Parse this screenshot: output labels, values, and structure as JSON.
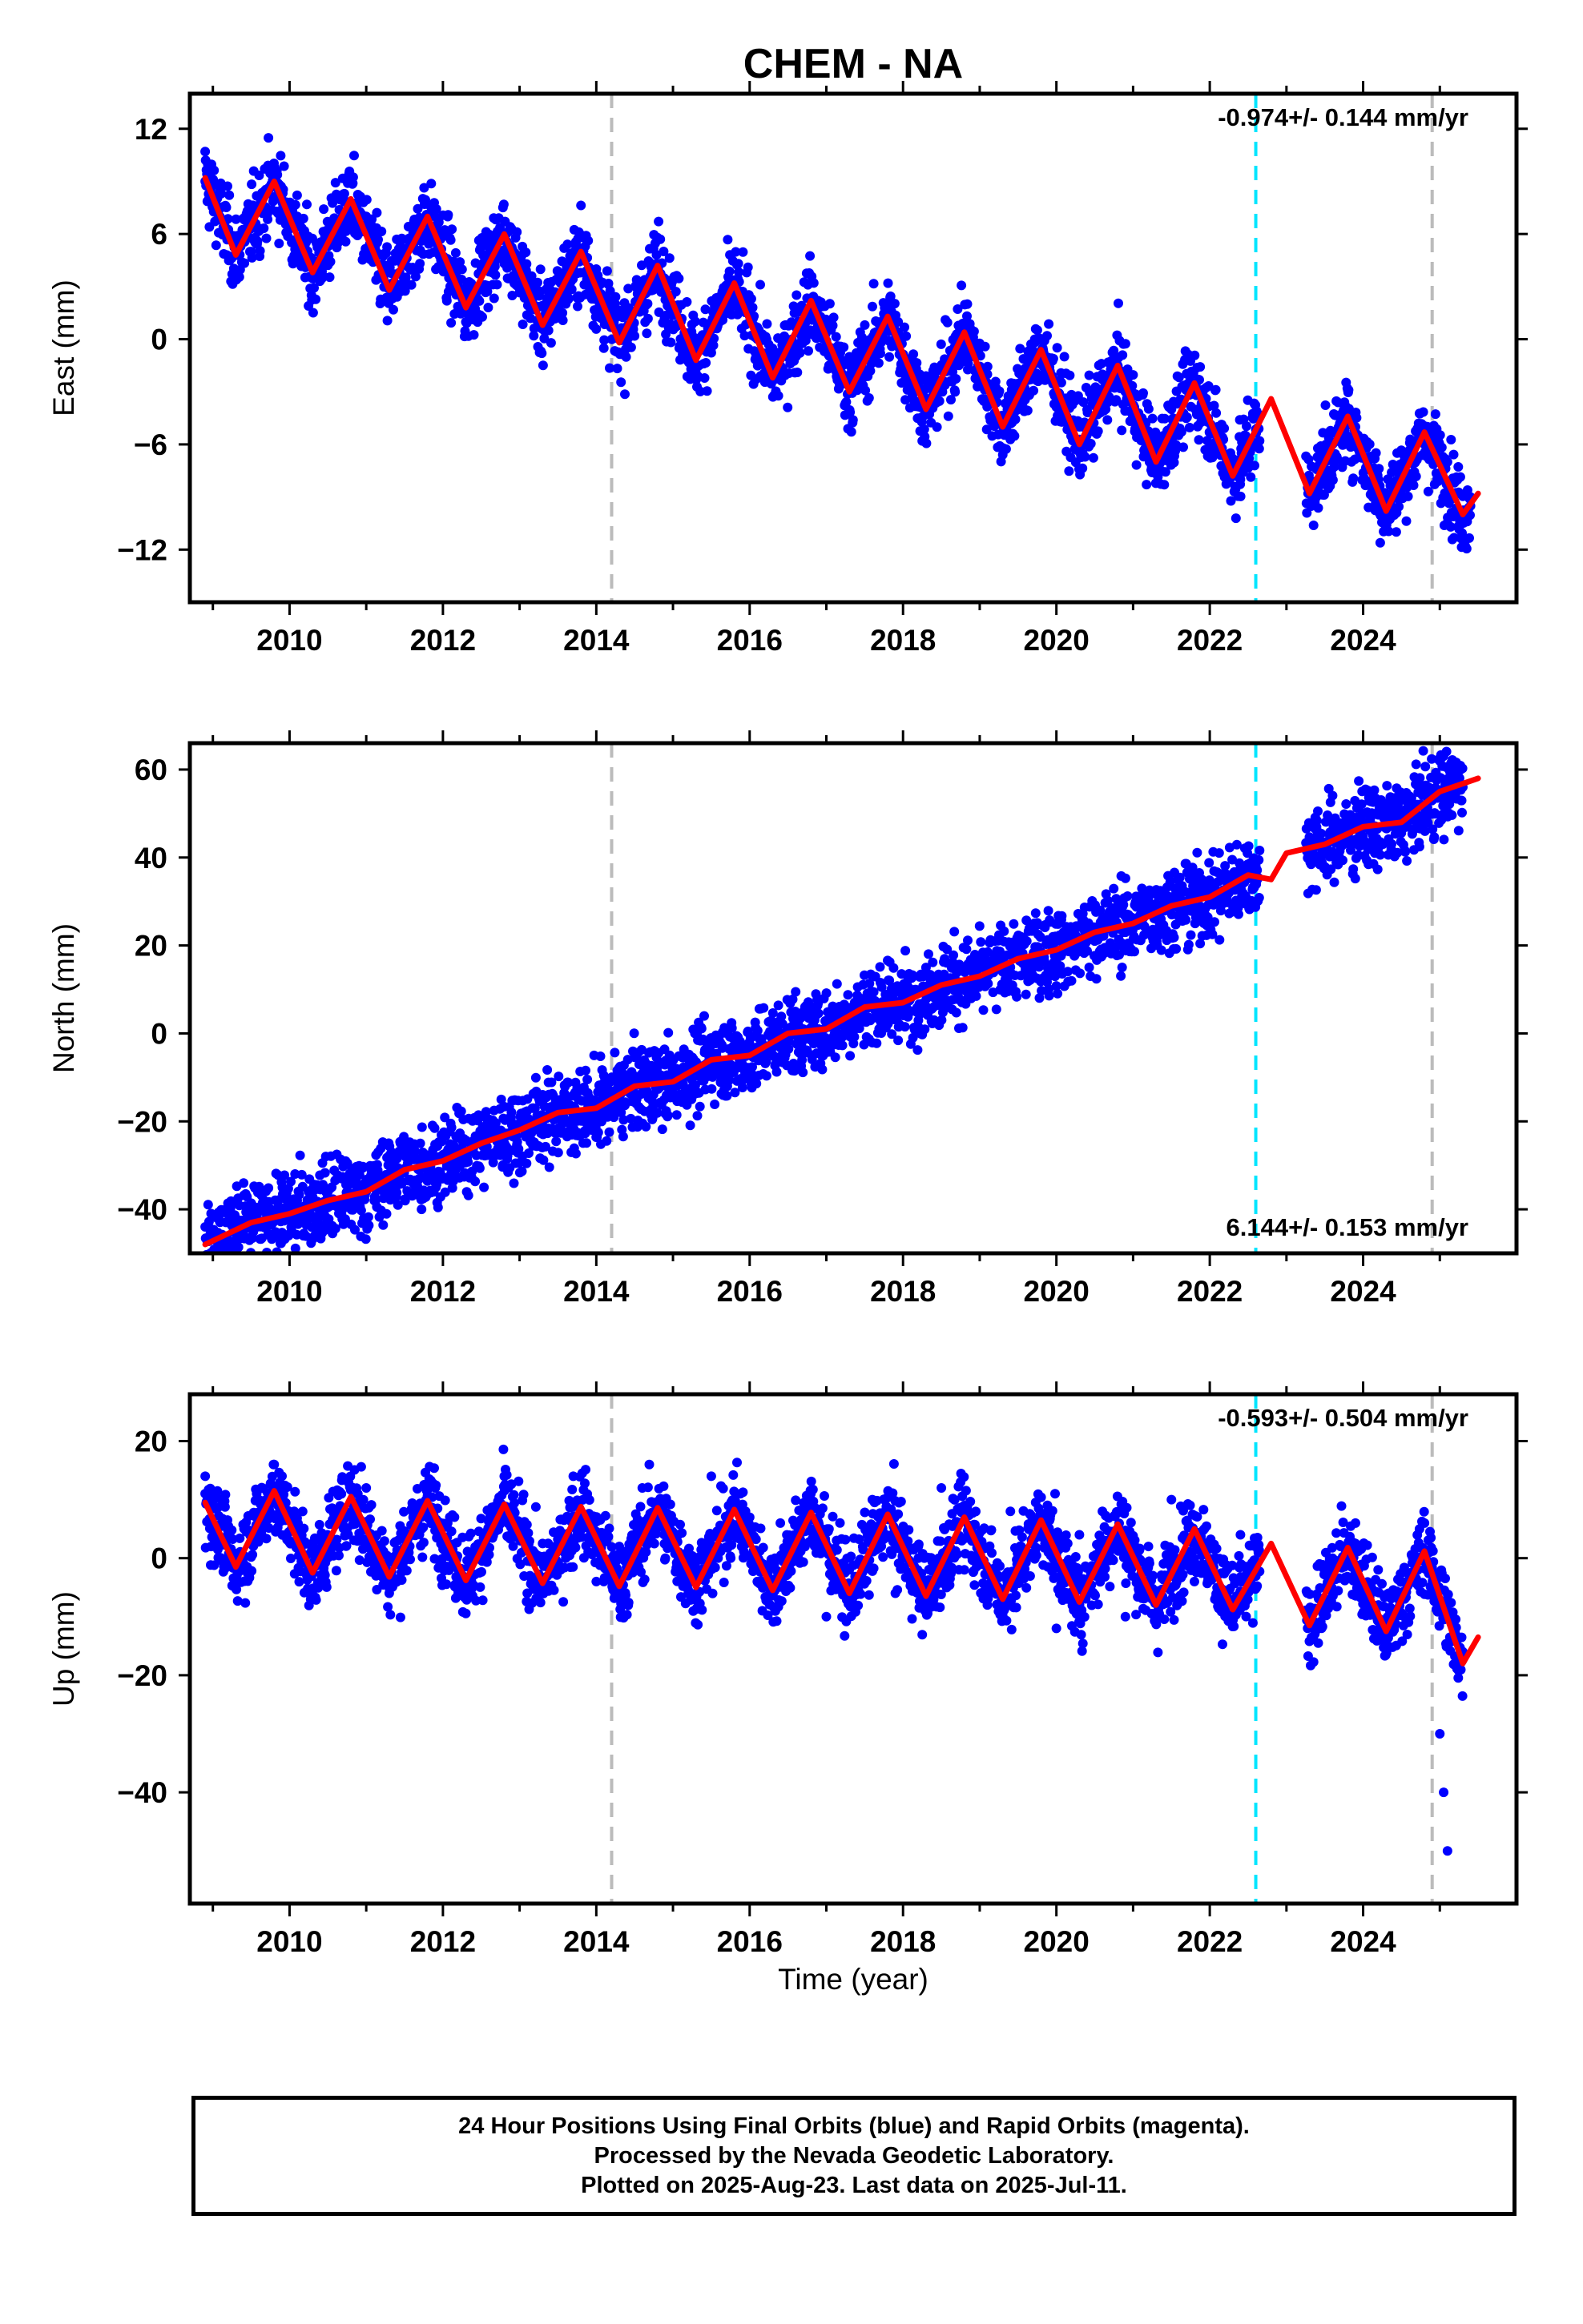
{
  "chart_data": {
    "type": "scatter",
    "title": "CHEM - NA",
    "xlabel": "Time (year)",
    "x_tick_labels": [
      "2010",
      "2012",
      "2014",
      "2016",
      "2018",
      "2020",
      "2022",
      "2024"
    ],
    "xlim": [
      2008.7,
      2026.0
    ],
    "reference_lines": [
      {
        "x": 2014.2,
        "color": "#bbbbbb",
        "style": "dashed"
      },
      {
        "x": 2022.6,
        "color": "#00e5ff",
        "style": "dashed"
      },
      {
        "x": 2024.9,
        "color": "#bbbbbb",
        "style": "dashed"
      }
    ],
    "data_gap": [
      2022.65,
      2023.25
    ],
    "colors": {
      "points": "#0000ff",
      "model": "#ff0000",
      "axes": "#000000"
    },
    "panels": [
      {
        "id": "east",
        "ylabel": "East (mm)",
        "ylim": [
          -15,
          14
        ],
        "yticks": [
          12,
          6,
          0,
          -6,
          -12
        ],
        "rate_label": "-0.974+/- 0.144 mm/yr",
        "rate_position": "top-right",
        "series": [
          {
            "type": "scatter",
            "x": [
              2008.9,
              2009.2,
              2009.5,
              2009.8,
              2010.1,
              2010.4,
              2010.7,
              2011.0,
              2011.3,
              2011.6,
              2011.9,
              2012.2,
              2012.5,
              2012.8,
              2013.1,
              2013.4,
              2013.7,
              2014.0,
              2014.3,
              2014.6,
              2014.9,
              2015.2,
              2015.5,
              2015.8,
              2016.1,
              2016.4,
              2016.7,
              2017.0,
              2017.3,
              2017.6,
              2017.9,
              2018.2,
              2018.5,
              2018.8,
              2019.1,
              2019.4,
              2019.7,
              2020.0,
              2020.3,
              2020.6,
              2020.9,
              2021.2,
              2021.5,
              2021.8,
              2022.1,
              2022.4,
              2023.3,
              2023.6,
              2023.9,
              2024.2,
              2024.5,
              2024.8,
              2025.1,
              2025.4
            ],
            "y": [
              9,
              6,
              5,
              9,
              7,
              4,
              7,
              7,
              4,
              4,
              7,
              3,
              3,
              5,
              3,
              1,
              4,
              4,
              0,
              2,
              3,
              0,
              0,
              3,
              0,
              -2,
              1,
              1,
              -1,
              0,
              1,
              -2,
              -3,
              0,
              -2,
              -4,
              -1,
              -3,
              -5,
              -2,
              -3,
              -6,
              -4,
              -3,
              -5,
              -8,
              -8,
              -6,
              -5,
              -8,
              -9,
              -6,
              -7,
              -9
            ]
          },
          {
            "type": "line",
            "x": [
              2008.9,
              2009.3,
              2009.8,
              2010.3,
              2010.8,
              2011.3,
              2011.8,
              2012.3,
              2012.8,
              2013.3,
              2013.8,
              2014.3,
              2014.8,
              2015.3,
              2015.8,
              2016.3,
              2016.8,
              2017.3,
              2017.8,
              2018.3,
              2018.8,
              2019.3,
              2019.8,
              2020.3,
              2020.8,
              2021.3,
              2021.8,
              2022.3,
              2022.8,
              2023.3,
              2023.8,
              2024.3,
              2024.8,
              2025.3,
              2025.5
            ],
            "y": [
              9.2,
              4.8,
              9.0,
              3.8,
              8.0,
              2.8,
              7.0,
              1.8,
              6.0,
              0.8,
              5.0,
              -0.2,
              4.2,
              -1.2,
              3.2,
              -2.2,
              2.2,
              -3.0,
              1.3,
              -4.0,
              0.4,
              -5.0,
              -0.6,
              -6.0,
              -1.5,
              -7.0,
              -2.5,
              -7.8,
              -3.4,
              -8.8,
              -4.4,
              -9.8,
              -5.3,
              -10.0,
              -8.8
            ]
          }
        ]
      },
      {
        "id": "north",
        "ylabel": "North (mm)",
        "ylim": [
          -50,
          66
        ],
        "yticks": [
          60,
          40,
          20,
          0,
          -20,
          -40
        ],
        "rate_label": "6.144+/- 0.153 mm/yr",
        "rate_position": "bottom-right",
        "series": [
          {
            "type": "scatter",
            "x": [
              2008.9,
              2009.3,
              2009.7,
              2010.1,
              2010.5,
              2010.9,
              2011.3,
              2011.7,
              2012.1,
              2012.5,
              2012.9,
              2013.3,
              2013.7,
              2014.1,
              2014.5,
              2014.9,
              2015.3,
              2015.7,
              2016.1,
              2016.5,
              2016.9,
              2017.3,
              2017.7,
              2018.1,
              2018.5,
              2018.9,
              2019.3,
              2019.7,
              2020.1,
              2020.5,
              2020.9,
              2021.3,
              2021.7,
              2022.1,
              2022.5,
              2023.3,
              2023.7,
              2024.1,
              2024.5,
              2024.9,
              2025.3
            ],
            "y": [
              -44,
              -42,
              -44,
              -38,
              -36,
              -37,
              -32,
              -31,
              -27,
              -25,
              -23,
              -20,
              -19,
              -15,
              -12,
              -11,
              -8,
              -7,
              -4,
              -2,
              1,
              3,
              5,
              8,
              10,
              12,
              14,
              17,
              19,
              21,
              23,
              26,
              28,
              32,
              36,
              42,
              43,
              47,
              49,
              53,
              56
            ]
          },
          {
            "type": "line",
            "x": [
              2008.9,
              2009.5,
              2010.0,
              2010.5,
              2011.0,
              2011.5,
              2012.0,
              2012.5,
              2013.0,
              2013.5,
              2014.0,
              2014.5,
              2015.0,
              2015.5,
              2016.0,
              2016.5,
              2017.0,
              2017.5,
              2018.0,
              2018.5,
              2019.0,
              2019.5,
              2020.0,
              2020.5,
              2021.0,
              2021.5,
              2022.0,
              2022.5,
              2022.8,
              2023.0,
              2023.5,
              2024.0,
              2024.5,
              2025.0,
              2025.5
            ],
            "y": [
              -48,
              -43,
              -41,
              -38,
              -36,
              -31,
              -29,
              -25,
              -22,
              -18,
              -17,
              -12,
              -11,
              -6,
              -5,
              0,
              1,
              6,
              7,
              11,
              13,
              17,
              19,
              23,
              25,
              29,
              31,
              36,
              35,
              41,
              43,
              47,
              48,
              55,
              58
            ]
          }
        ]
      },
      {
        "id": "up",
        "ylabel": "Up (mm)",
        "ylim": [
          -59,
          28
        ],
        "yticks": [
          20,
          0,
          -20,
          -40
        ],
        "rate_label": "-0.593+/- 0.504 mm/yr",
        "rate_position": "top-right",
        "series": [
          {
            "type": "scatter",
            "x": [
              2008.9,
              2009.2,
              2009.5,
              2009.8,
              2010.1,
              2010.4,
              2010.7,
              2011.0,
              2011.3,
              2011.6,
              2011.9,
              2012.2,
              2012.5,
              2012.8,
              2013.1,
              2013.4,
              2013.7,
              2014.0,
              2014.3,
              2014.6,
              2014.9,
              2015.2,
              2015.5,
              2015.8,
              2016.1,
              2016.4,
              2016.7,
              2017.0,
              2017.3,
              2017.6,
              2017.9,
              2018.2,
              2018.5,
              2018.8,
              2019.1,
              2019.4,
              2019.7,
              2020.0,
              2020.3,
              2020.6,
              2020.9,
              2021.2,
              2021.5,
              2021.8,
              2022.1,
              2022.4,
              2023.3,
              2023.6,
              2023.9,
              2024.2,
              2024.5,
              2024.8,
              2025.0,
              2025.05,
              2025.1,
              2025.3
            ],
            "y": [
              14,
              0,
              4,
              16,
              6,
              -4,
              8,
              12,
              -6,
              4,
              12,
              -2,
              0,
              14,
              -6,
              0,
              14,
              -4,
              2,
              12,
              0,
              -6,
              14,
              10,
              -4,
              6,
              8,
              -10,
              -2,
              10,
              -6,
              0,
              12,
              -2,
              -8,
              8,
              4,
              -12,
              4,
              8,
              -10,
              2,
              10,
              -4,
              -6,
              4,
              -10,
              0,
              6,
              -8,
              -4,
              6,
              -30,
              -40,
              -50,
              -16
            ]
          },
          {
            "type": "line",
            "x": [
              2008.9,
              2009.3,
              2009.8,
              2010.3,
              2010.8,
              2011.3,
              2011.8,
              2012.3,
              2012.8,
              2013.3,
              2013.8,
              2014.3,
              2014.8,
              2015.3,
              2015.8,
              2016.3,
              2016.8,
              2017.3,
              2017.8,
              2018.3,
              2018.8,
              2019.3,
              2019.8,
              2020.3,
              2020.8,
              2021.3,
              2021.8,
              2022.3,
              2022.8,
              2023.3,
              2023.8,
              2024.3,
              2024.8,
              2025.3,
              2025.5
            ],
            "y": [
              9.5,
              -1.5,
              11.5,
              -2.5,
              10.5,
              -3.2,
              9.8,
              -3.8,
              9.2,
              -4.3,
              8.8,
              -4.8,
              8.6,
              -5.0,
              8.3,
              -5.5,
              7.8,
              -6.0,
              7.5,
              -6.5,
              7.0,
              -7.0,
              6.5,
              -7.5,
              5.8,
              -8.0,
              5.0,
              -8.8,
              2.5,
              -11.5,
              1.8,
              -12.5,
              1.2,
              -18.0,
              -13.5
            ]
          }
        ]
      }
    ]
  },
  "footer": {
    "line1": "24 Hour Positions Using Final Orbits (blue) and Rapid Orbits (magenta).",
    "line2": "Processed by the Nevada Geodetic Laboratory.",
    "line3": "Plotted on 2025-Aug-23. Last data on 2025-Jul-11."
  }
}
